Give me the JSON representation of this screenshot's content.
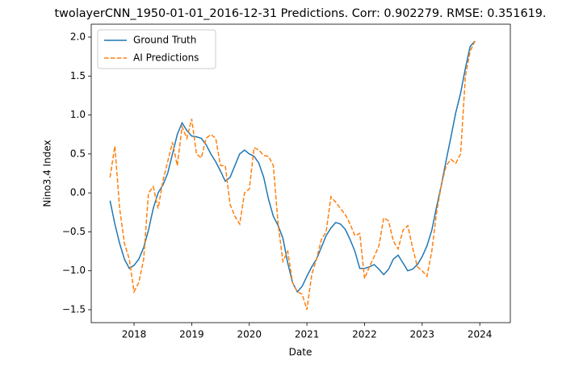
{
  "chart_data": {
    "type": "line",
    "title": "twolayerCNN_1950-01-01_2016-12-31 Predictions. Corr: 0.902279. RMSE: 0.351619.",
    "xlabel": "Date",
    "ylabel": "Nino3.4 Index",
    "x": [
      2017.583,
      2017.667,
      2017.75,
      2017.833,
      2017.917,
      2018.0,
      2018.083,
      2018.167,
      2018.25,
      2018.333,
      2018.417,
      2018.5,
      2018.583,
      2018.667,
      2018.75,
      2018.833,
      2018.917,
      2019.0,
      2019.083,
      2019.167,
      2019.25,
      2019.333,
      2019.417,
      2019.5,
      2019.583,
      2019.667,
      2019.75,
      2019.833,
      2019.917,
      2020.0,
      2020.083,
      2020.167,
      2020.25,
      2020.333,
      2020.417,
      2020.5,
      2020.583,
      2020.667,
      2020.75,
      2020.833,
      2020.917,
      2021.0,
      2021.083,
      2021.167,
      2021.25,
      2021.333,
      2021.417,
      2021.5,
      2021.583,
      2021.667,
      2021.75,
      2021.833,
      2021.917,
      2022.0,
      2022.083,
      2022.167,
      2022.25,
      2022.333,
      2022.417,
      2022.5,
      2022.583,
      2022.667,
      2022.75,
      2022.833,
      2022.917,
      2023.0,
      2023.083,
      2023.167,
      2023.25,
      2023.333,
      2023.417,
      2023.5,
      2023.583,
      2023.667,
      2023.75,
      2023.833,
      2023.917
    ],
    "series": [
      {
        "name": "Ground Truth",
        "color": "#1f77b4",
        "dash": "solid",
        "values": [
          -0.1,
          -0.4,
          -0.65,
          -0.85,
          -0.97,
          -0.93,
          -0.85,
          -0.7,
          -0.48,
          -0.2,
          0.0,
          0.1,
          0.25,
          0.5,
          0.75,
          0.9,
          0.8,
          0.73,
          0.72,
          0.7,
          0.62,
          0.5,
          0.4,
          0.28,
          0.15,
          0.2,
          0.35,
          0.5,
          0.55,
          0.5,
          0.47,
          0.38,
          0.2,
          -0.08,
          -0.3,
          -0.42,
          -0.58,
          -0.9,
          -1.15,
          -1.27,
          -1.2,
          -1.07,
          -0.95,
          -0.85,
          -0.7,
          -0.55,
          -0.45,
          -0.38,
          -0.4,
          -0.47,
          -0.6,
          -0.75,
          -0.97,
          -0.97,
          -0.95,
          -0.92,
          -0.98,
          -1.05,
          -0.98,
          -0.85,
          -0.8,
          -0.9,
          -1.0,
          -0.98,
          -0.92,
          -0.82,
          -0.68,
          -0.48,
          -0.18,
          0.1,
          0.42,
          0.72,
          1.03,
          1.28,
          1.6,
          1.88,
          1.95
        ]
      },
      {
        "name": "AI Predictions",
        "color": "#ff7f0e",
        "dash": "dashed",
        "values": [
          0.2,
          0.6,
          -0.2,
          -0.65,
          -0.85,
          -1.27,
          -1.15,
          -0.85,
          0.0,
          0.08,
          -0.2,
          0.15,
          0.4,
          0.65,
          0.35,
          0.85,
          0.7,
          0.95,
          0.5,
          0.45,
          0.7,
          0.75,
          0.7,
          0.35,
          0.35,
          -0.15,
          -0.3,
          -0.4,
          0.0,
          0.05,
          0.58,
          0.55,
          0.48,
          0.47,
          0.35,
          -0.4,
          -0.88,
          -0.75,
          -1.15,
          -1.27,
          -1.3,
          -1.5,
          -1.05,
          -0.85,
          -0.6,
          -0.5,
          -0.05,
          -0.12,
          -0.2,
          -0.28,
          -0.4,
          -0.55,
          -0.52,
          -1.1,
          -0.95,
          -0.82,
          -0.68,
          -0.32,
          -0.36,
          -0.62,
          -0.72,
          -0.48,
          -0.42,
          -0.7,
          -0.95,
          -1.0,
          -1.07,
          -0.75,
          -0.25,
          0.1,
          0.35,
          0.43,
          0.38,
          0.5,
          1.5,
          1.82,
          1.95
        ]
      }
    ],
    "xlim": [
      2017.257,
      2024.53
    ],
    "ylim": [
      -1.666,
      2.166
    ],
    "xticks": [
      2018,
      2019,
      2020,
      2021,
      2022,
      2023,
      2024
    ],
    "yticks": [
      {
        "value": -1.5,
        "label": "−1.5"
      },
      {
        "value": -1.0,
        "label": "−1.0"
      },
      {
        "value": -0.5,
        "label": "−0.5"
      },
      {
        "value": 0.0,
        "label": "0.0"
      },
      {
        "value": 0.5,
        "label": "0.5"
      },
      {
        "value": 1.0,
        "label": "1.0"
      },
      {
        "value": 1.5,
        "label": "1.5"
      },
      {
        "value": 2.0,
        "label": "2.0"
      }
    ],
    "grid": false,
    "legend": "upper left"
  }
}
